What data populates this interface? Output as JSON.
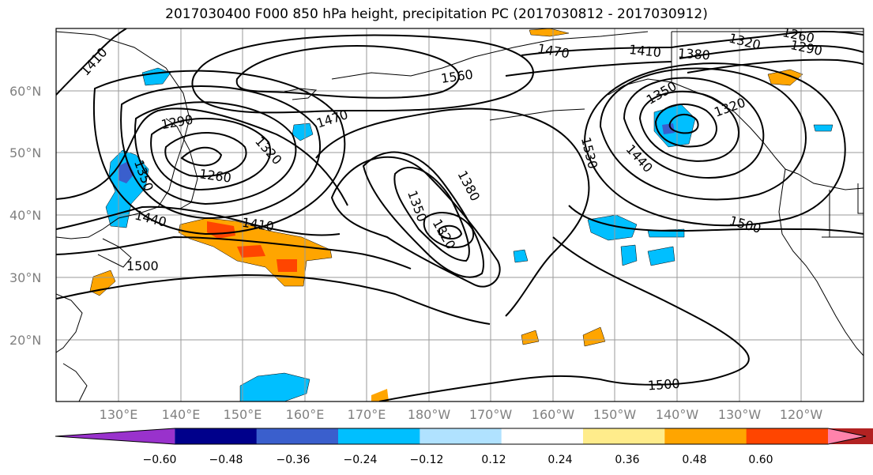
{
  "title": "2017030400 F000 850 hPa height, precipitation PC (2017030812 - 2017030912)",
  "lat_labels": [
    "60°N",
    "50°N",
    "40°N",
    "30°N",
    "20°N"
  ],
  "lon_labels": [
    "130°E",
    "140°E",
    "150°E",
    "160°E",
    "170°E",
    "180°W",
    "170°W",
    "160°W",
    "150°W",
    "140°W",
    "130°W",
    "120°W"
  ],
  "contour_labels": [
    "1410",
    "1560",
    "1470",
    "1410",
    "1380",
    "1320",
    "1260",
    "1290",
    "1290",
    "1470",
    "1320",
    "1260",
    "1350",
    "1380",
    "1320",
    "1350",
    "1410",
    "1440",
    "1500",
    "1530",
    "1440",
    "1350",
    "1320",
    "1500",
    "1500"
  ],
  "colorbar": {
    "colors": [
      "#9932CC",
      "#00008B",
      "#3A5FCD",
      "#00BFFF",
      "#B0E2FF",
      "#FFFFFF",
      "#FFEC8B",
      "#FFA500",
      "#FF4500",
      "#B22222",
      "#FF82AB"
    ],
    "tick_labels": [
      "−0.60",
      "−0.48",
      "−0.36",
      "−0.24",
      "−0.12",
      "0.12",
      "0.24",
      "0.36",
      "0.48",
      "0.60"
    ]
  }
}
